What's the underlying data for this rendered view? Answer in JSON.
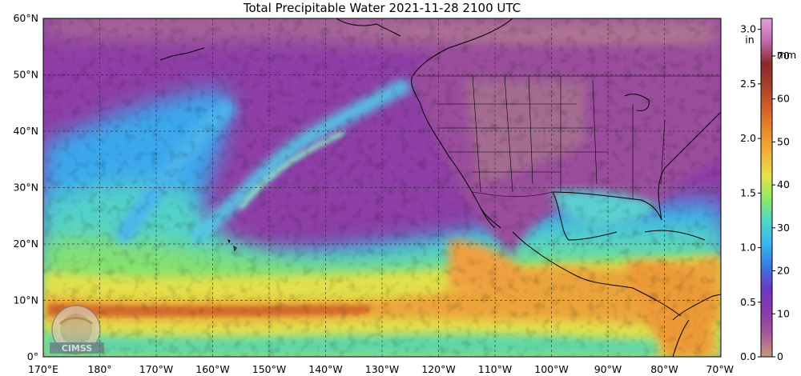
{
  "title": "Total Precipitable Water  2021-11-28 2100 UTC",
  "map": {
    "lat_labels": [
      "60°N",
      "50°N",
      "40°N",
      "30°N",
      "20°N",
      "10°N",
      "0°"
    ],
    "lon_labels": [
      "170°E",
      "180°",
      "170°W",
      "160°W",
      "150°W",
      "140°W",
      "130°W",
      "120°W",
      "110°W",
      "100°W",
      "90°W",
      "80°W",
      "70°W"
    ],
    "watermark": "CIMSS"
  },
  "colorbar": {
    "inch_ticks": [
      "3.0",
      "2.5",
      "2.0",
      "1.5",
      "1.0",
      "0.5",
      "0.0"
    ],
    "inch_unit": "in",
    "mm_ticks": [
      "70",
      "60",
      "50",
      "40",
      "30",
      "20",
      "10",
      "0"
    ],
    "mm_unit": "mm",
    "colors": [
      "#c89a7c",
      "#a45a9c",
      "#8a3aa8",
      "#6a3ac0",
      "#3a78e0",
      "#3ab4f0",
      "#4cd8c8",
      "#8ee868",
      "#e2e44a",
      "#f2b43c",
      "#e98a2e",
      "#d2602a",
      "#a8402c",
      "#8a2a2a",
      "#c06ab0",
      "#e4a0d8"
    ]
  },
  "tpw_field": {
    "unit": "mm"
  }
}
